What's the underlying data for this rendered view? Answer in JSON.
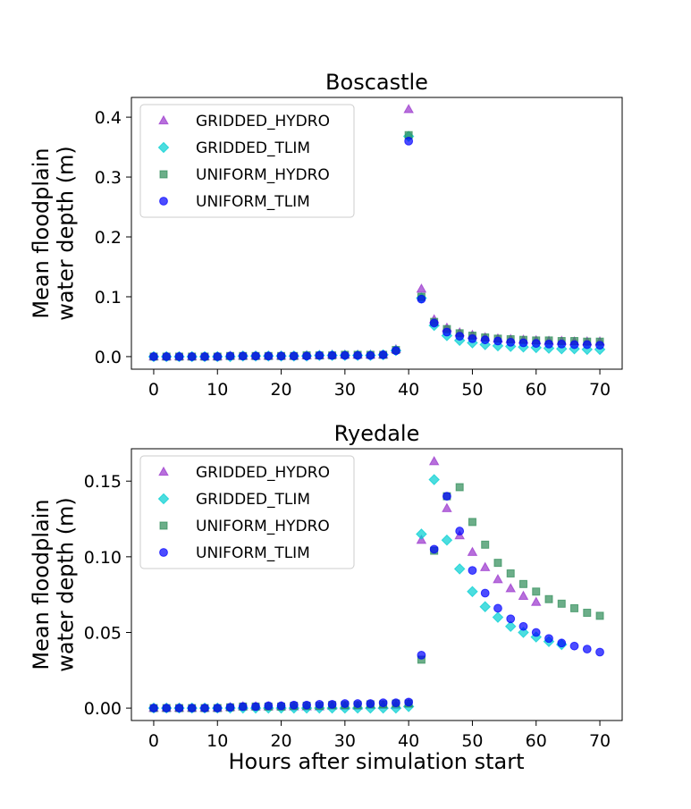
{
  "figure": {
    "xlabel": "Hours after simulation start"
  },
  "chart_data": [
    {
      "type": "scatter",
      "title": "Boscastle",
      "xlabel": "",
      "ylabel": "Mean floodplain\nwater depth (m)",
      "xlim": [
        -3.5,
        73.5
      ],
      "ylim": [
        -0.021,
        0.433
      ],
      "xticks": [
        0,
        10,
        20,
        30,
        40,
        50,
        60,
        70
      ],
      "yticks": [
        0.0,
        0.1,
        0.2,
        0.3,
        0.4
      ],
      "ytick_labels": [
        "0.0",
        "0.1",
        "0.2",
        "0.3",
        "0.4"
      ],
      "legend_position": "upper-left",
      "grid": false,
      "x": [
        0,
        2,
        4,
        6,
        8,
        10,
        12,
        14,
        16,
        18,
        20,
        22,
        24,
        26,
        28,
        30,
        32,
        34,
        36,
        38,
        40,
        42,
        44,
        46,
        48,
        50,
        52,
        54,
        56,
        58,
        60,
        62,
        64,
        66,
        68,
        70
      ],
      "series": [
        {
          "name": "GRIDDED_HYDRO",
          "marker": "triangle",
          "color": "#9932CC",
          "values": [
            0,
            0,
            0,
            0,
            0,
            0,
            0.001,
            0.001,
            0.001,
            0.001,
            0.001,
            0.001,
            0.002,
            0.002,
            0.003,
            0.003,
            0.003,
            0.003,
            0.003,
            0.012,
            0.413,
            0.113,
            0.062,
            0.048,
            0.04,
            0.036,
            0.032,
            0.03,
            0.029,
            0.028,
            0.027,
            0.026,
            0.026,
            0.025,
            0.025,
            0.025
          ]
        },
        {
          "name": "GRIDDED_TLIM",
          "marker": "diamond",
          "color": "#00CED1",
          "values": [
            0,
            0,
            0,
            0,
            0,
            0,
            0,
            0.001,
            0.001,
            0.001,
            0.001,
            0.001,
            0.001,
            0.002,
            0.002,
            0.002,
            0.002,
            0.002,
            0.003,
            0.01,
            0.368,
            0.098,
            0.052,
            0.035,
            0.027,
            0.023,
            0.02,
            0.018,
            0.017,
            0.016,
            0.015,
            0.014,
            0.013,
            0.013,
            0.012,
            0.012
          ]
        },
        {
          "name": "UNIFORM_HYDRO",
          "marker": "square",
          "color": "#2E8B57",
          "values": [
            0,
            0,
            0,
            0,
            0,
            0,
            0.001,
            0.001,
            0.001,
            0.001,
            0.001,
            0.001,
            0.002,
            0.002,
            0.002,
            0.003,
            0.003,
            0.003,
            0.003,
            0.011,
            0.37,
            0.1,
            0.058,
            0.046,
            0.039,
            0.035,
            0.032,
            0.03,
            0.029,
            0.028,
            0.027,
            0.027,
            0.026,
            0.026,
            0.025,
            0.025
          ]
        },
        {
          "name": "UNIFORM_TLIM",
          "marker": "circle",
          "color": "#0000FF",
          "values": [
            0,
            0,
            0,
            0,
            0,
            0,
            0.001,
            0.001,
            0.001,
            0.001,
            0.001,
            0.001,
            0.001,
            0.002,
            0.002,
            0.002,
            0.002,
            0.002,
            0.003,
            0.01,
            0.36,
            0.096,
            0.056,
            0.041,
            0.034,
            0.03,
            0.028,
            0.026,
            0.024,
            0.023,
            0.022,
            0.021,
            0.021,
            0.02,
            0.02,
            0.019
          ]
        }
      ]
    },
    {
      "type": "scatter",
      "title": "Ryedale",
      "xlabel": "",
      "ylabel": "Mean floodplain\nwater depth (m)",
      "xlim": [
        -3.5,
        73.5
      ],
      "ylim": [
        -0.0082,
        0.1714
      ],
      "xticks": [
        0,
        10,
        20,
        30,
        40,
        50,
        60,
        70
      ],
      "yticks": [
        0.0,
        0.05,
        0.1,
        0.15
      ],
      "ytick_labels": [
        "0.00",
        "0.05",
        "0.10",
        "0.15"
      ],
      "legend_position": "upper-left",
      "grid": false,
      "series": [
        {
          "name": "GRIDDED_HYDRO",
          "marker": "triangle",
          "color": "#9932CC",
          "x": [
            0,
            2,
            4,
            6,
            8,
            10,
            12,
            14,
            16,
            18,
            20,
            22,
            24,
            26,
            28,
            30,
            32,
            34,
            36,
            38,
            40,
            42,
            44,
            46,
            48,
            50,
            52,
            54,
            56,
            58,
            60
          ],
          "values": [
            0,
            0,
            0,
            0,
            0,
            0,
            0.0005,
            0.001,
            0.001,
            0.001,
            0.001,
            0.001,
            0.001,
            0.001,
            0.0015,
            0.0015,
            0.0015,
            0.002,
            0.002,
            0.002,
            0.003,
            0.111,
            0.163,
            0.132,
            0.114,
            0.103,
            0.093,
            0.085,
            0.079,
            0.074,
            0.07
          ]
        },
        {
          "name": "GRIDDED_TLIM",
          "marker": "diamond",
          "color": "#00CED1",
          "x": [
            0,
            2,
            4,
            6,
            8,
            10,
            12,
            14,
            16,
            18,
            20,
            22,
            24,
            26,
            28,
            30,
            32,
            34,
            36,
            38,
            40,
            42,
            44,
            46,
            48,
            50,
            52,
            54,
            56,
            58,
            60,
            62,
            64
          ],
          "values": [
            0,
            0,
            0,
            0,
            0,
            0,
            0,
            0,
            0,
            0,
            0,
            0,
            0,
            0,
            0,
            0,
            0,
            0,
            0,
            0,
            0.001,
            0.115,
            0.151,
            0.111,
            0.092,
            0.077,
            0.067,
            0.06,
            0.054,
            0.05,
            0.047,
            0.044,
            0.042
          ]
        },
        {
          "name": "UNIFORM_HYDRO",
          "marker": "square",
          "color": "#2E8B57",
          "x": [
            0,
            2,
            4,
            6,
            8,
            10,
            12,
            14,
            16,
            18,
            20,
            22,
            24,
            26,
            28,
            30,
            32,
            34,
            36,
            38,
            40,
            42,
            44,
            46,
            48,
            50,
            52,
            54,
            56,
            58,
            60,
            62,
            64,
            66,
            68,
            70
          ],
          "values": [
            0,
            0,
            0,
            0,
            0,
            0,
            0.0005,
            0.001,
            0.001,
            0.001,
            0.001,
            0.0015,
            0.0015,
            0.0015,
            0.002,
            0.002,
            0.002,
            0.0025,
            0.0025,
            0.003,
            0.003,
            0.032,
            0.104,
            0.14,
            0.146,
            0.123,
            0.108,
            0.096,
            0.089,
            0.082,
            0.077,
            0.072,
            0.069,
            0.066,
            0.063,
            0.061
          ]
        },
        {
          "name": "UNIFORM_TLIM",
          "marker": "circle",
          "color": "#0000FF",
          "x": [
            0,
            2,
            4,
            6,
            8,
            10,
            12,
            14,
            16,
            18,
            20,
            22,
            24,
            26,
            28,
            30,
            32,
            34,
            36,
            38,
            40,
            42,
            44,
            46,
            48,
            50,
            52,
            54,
            56,
            58,
            60,
            62,
            64,
            66,
            68,
            70
          ],
          "values": [
            0,
            0,
            0,
            0,
            0,
            0,
            0.0005,
            0.001,
            0.001,
            0.0015,
            0.0015,
            0.002,
            0.002,
            0.0025,
            0.0025,
            0.003,
            0.003,
            0.003,
            0.0035,
            0.0035,
            0.004,
            0.035,
            0.105,
            0.14,
            0.117,
            0.091,
            0.076,
            0.066,
            0.059,
            0.054,
            0.05,
            0.046,
            0.043,
            0.041,
            0.039,
            0.037
          ]
        }
      ]
    }
  ]
}
